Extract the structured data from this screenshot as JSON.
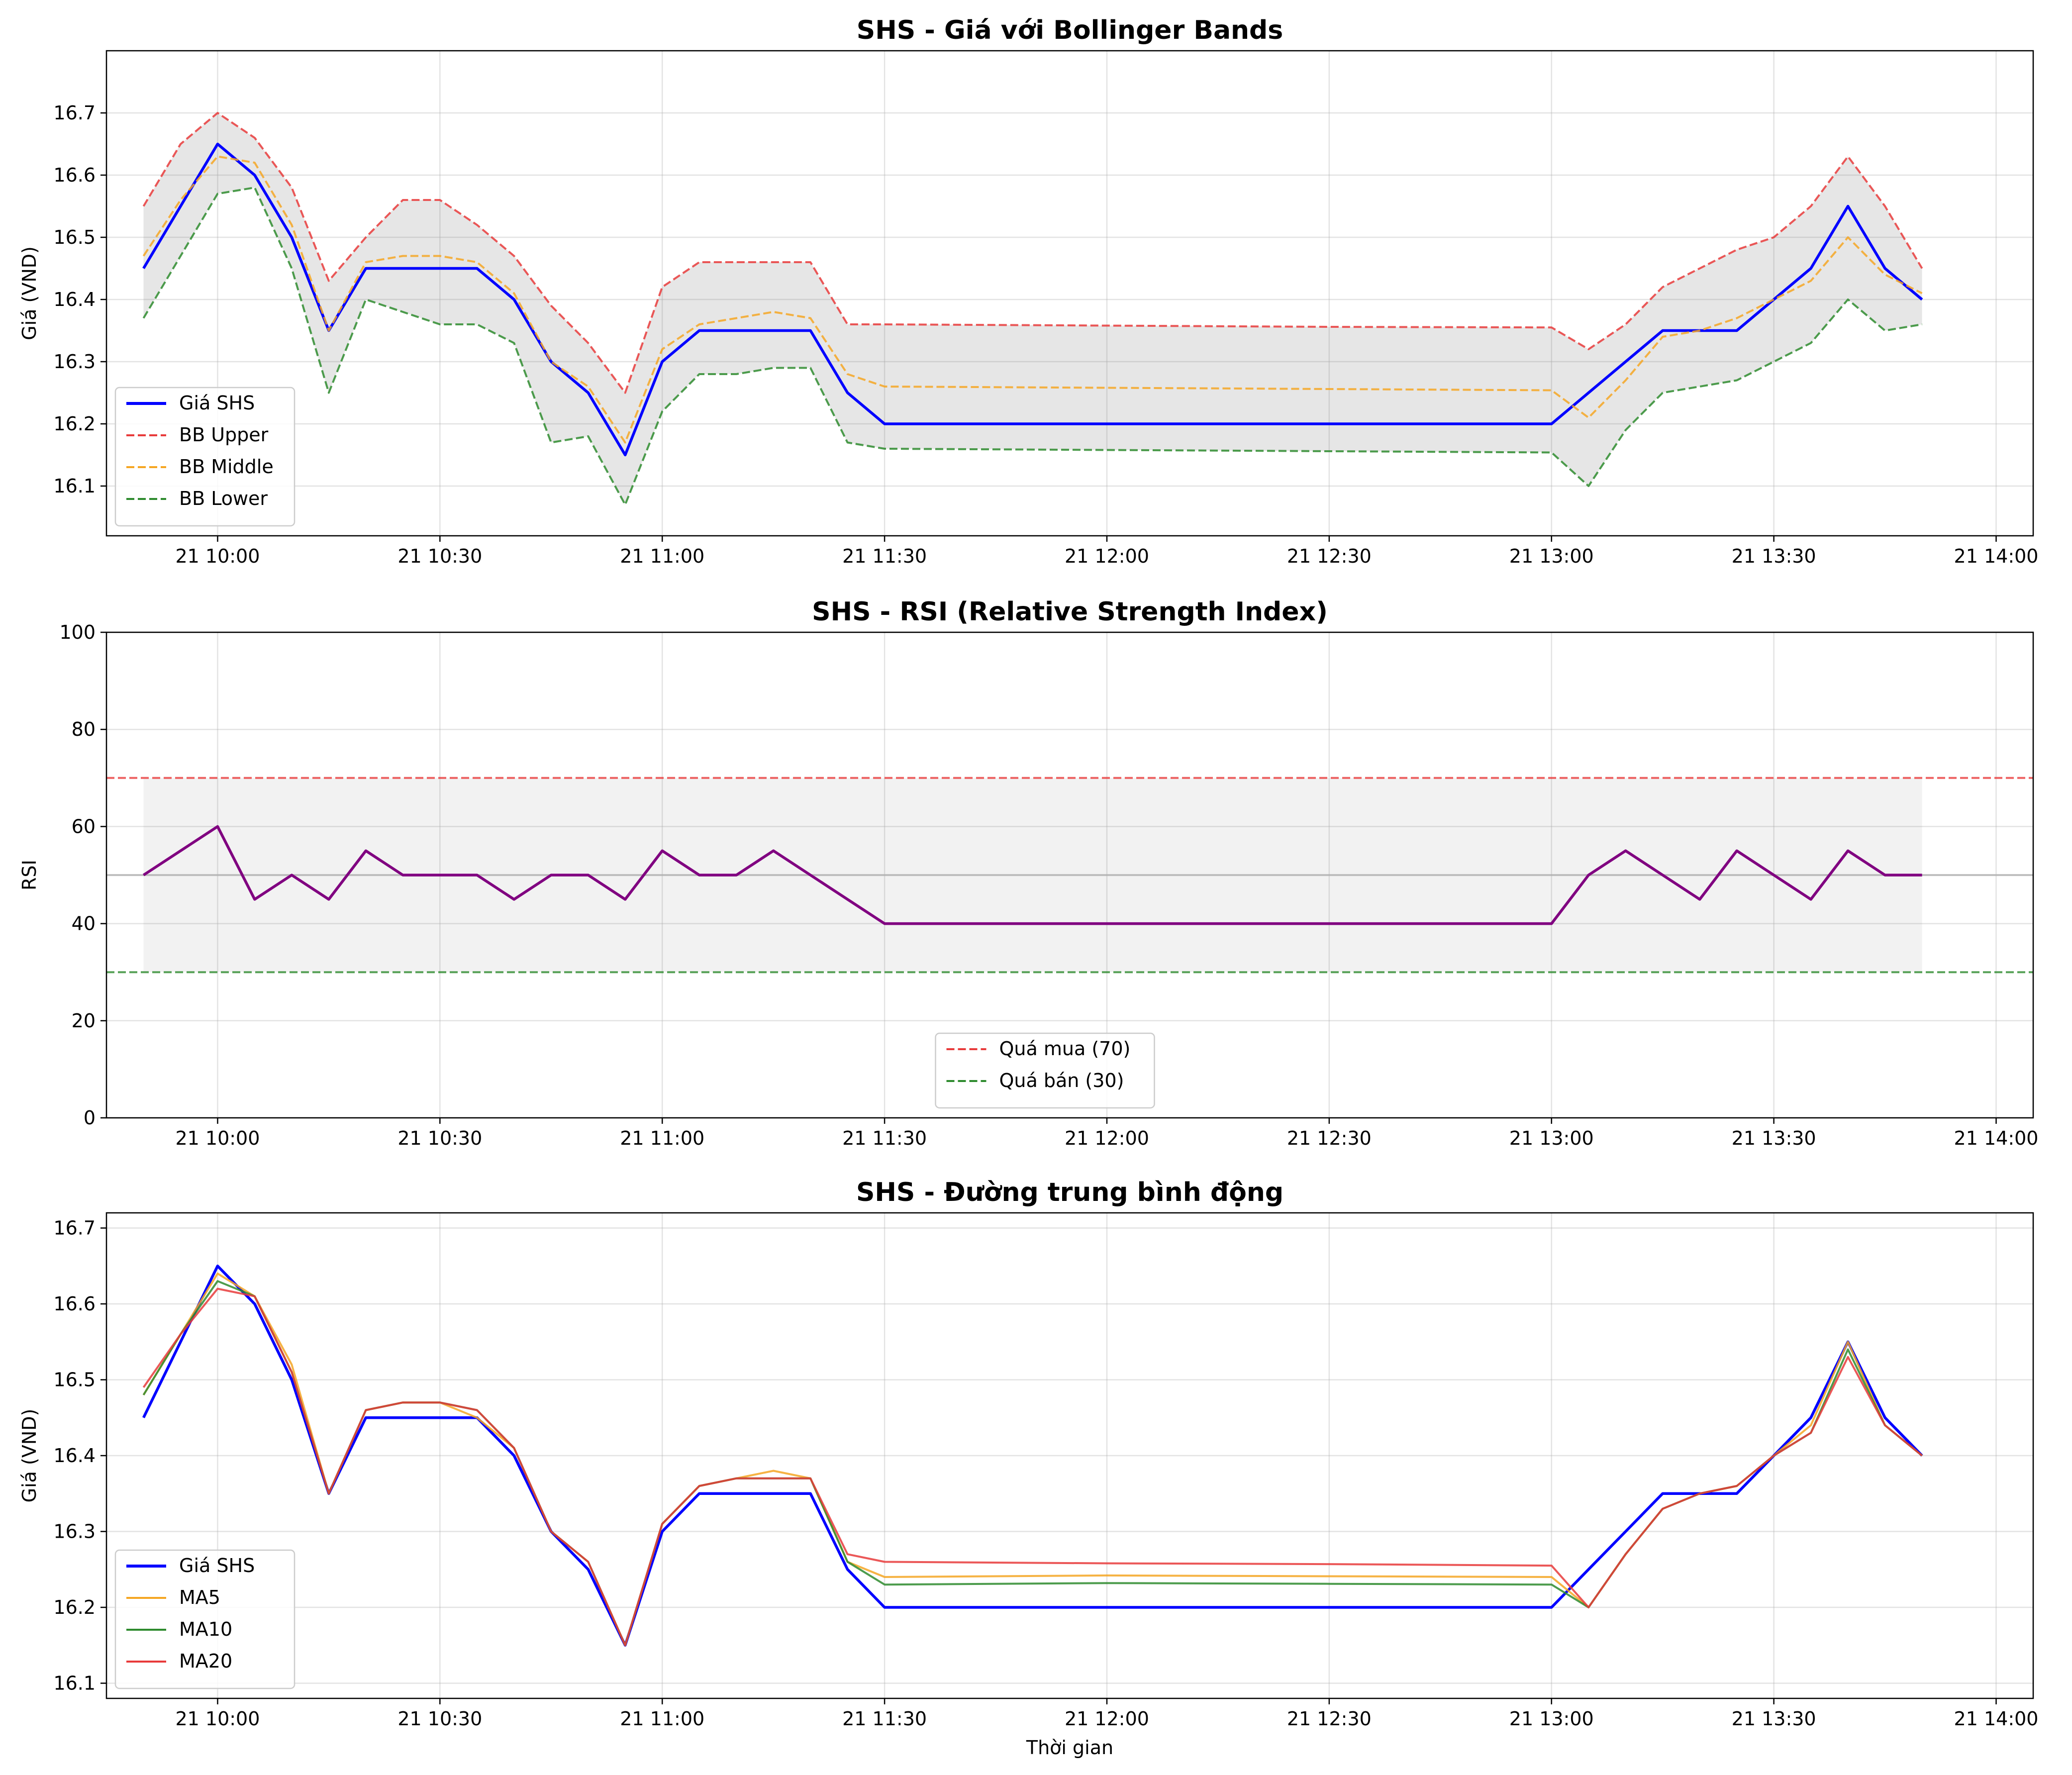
{
  "chart_data": [
    {
      "type": "line",
      "title": "SHS - Giá với Bollinger Bands",
      "xlabel": "",
      "ylabel": "Giá (VND)",
      "xlim": [
        "09:45",
        "14:05"
      ],
      "ylim": [
        16.02,
        16.8
      ],
      "xticks": [
        "21 10:00",
        "21 10:30",
        "21 11:00",
        "21 11:30",
        "21 12:00",
        "21 12:30",
        "21 13:00",
        "21 13:30",
        "21 14:00"
      ],
      "yticks": [
        "16.1",
        "16.2",
        "16.3",
        "16.4",
        "16.5",
        "16.6",
        "16.7"
      ],
      "grid": true,
      "legend_position": "lower-left",
      "x": [
        "09:50",
        "09:55",
        "10:00",
        "10:05",
        "10:10",
        "10:15",
        "10:20",
        "10:25",
        "10:30",
        "10:35",
        "10:40",
        "10:45",
        "10:50",
        "10:55",
        "11:00",
        "11:05",
        "11:10",
        "11:15",
        "11:20",
        "11:25",
        "11:30",
        "12:00",
        "12:30",
        "13:00",
        "13:05",
        "13:10",
        "13:15",
        "13:20",
        "13:25",
        "13:30",
        "13:35",
        "13:40",
        "13:45",
        "13:50"
      ],
      "series": [
        {
          "name": "Giá SHS",
          "color": "#0000ff",
          "style": "solid",
          "values": [
            16.45,
            16.55,
            16.65,
            16.6,
            16.5,
            16.35,
            16.45,
            16.45,
            16.45,
            16.45,
            16.4,
            16.3,
            16.25,
            16.15,
            16.3,
            16.35,
            16.35,
            16.35,
            16.35,
            16.25,
            16.2,
            16.2,
            16.2,
            16.2,
            16.25,
            16.3,
            16.35,
            16.35,
            16.35,
            16.4,
            16.45,
            16.55,
            16.45,
            16.4
          ]
        },
        {
          "name": "BB Upper",
          "color": "#e83b3b",
          "style": "dashed",
          "values": [
            16.55,
            16.65,
            16.7,
            16.66,
            16.58,
            16.43,
            16.5,
            16.56,
            16.56,
            16.52,
            16.47,
            16.39,
            16.33,
            16.25,
            16.42,
            16.46,
            16.46,
            16.46,
            16.46,
            16.36,
            16.36,
            16.358,
            16.356,
            16.355,
            16.32,
            16.36,
            16.42,
            16.45,
            16.48,
            16.5,
            16.55,
            16.63,
            16.55,
            16.45
          ]
        },
        {
          "name": "BB Middle",
          "color": "#f5a623",
          "style": "dashed",
          "values": [
            16.47,
            16.56,
            16.63,
            16.62,
            16.52,
            16.35,
            16.46,
            16.47,
            16.47,
            16.46,
            16.41,
            16.3,
            16.26,
            16.17,
            16.32,
            16.36,
            16.37,
            16.38,
            16.37,
            16.28,
            16.26,
            16.258,
            16.256,
            16.254,
            16.21,
            16.27,
            16.34,
            16.35,
            16.37,
            16.4,
            16.43,
            16.5,
            16.44,
            16.41
          ]
        },
        {
          "name": "BB Lower",
          "color": "#2e8b2e",
          "style": "dashed",
          "values": [
            16.37,
            16.47,
            16.57,
            16.58,
            16.45,
            16.25,
            16.4,
            16.38,
            16.36,
            16.36,
            16.33,
            16.17,
            16.18,
            16.07,
            16.22,
            16.28,
            16.28,
            16.29,
            16.29,
            16.17,
            16.16,
            16.158,
            16.156,
            16.154,
            16.1,
            16.19,
            16.25,
            16.26,
            16.27,
            16.3,
            16.33,
            16.4,
            16.35,
            16.36
          ]
        }
      ],
      "fill_between": [
        "BB Upper",
        "BB Lower"
      ]
    },
    {
      "type": "line",
      "title": "SHS - RSI (Relative Strength Index)",
      "xlabel": "",
      "ylabel": "RSI",
      "xlim": [
        "09:45",
        "14:05"
      ],
      "ylim": [
        0,
        100
      ],
      "xticks": [
        "21 10:00",
        "21 10:30",
        "21 11:00",
        "21 11:30",
        "21 12:00",
        "21 12:30",
        "21 13:00",
        "21 13:30",
        "21 14:00"
      ],
      "yticks": [
        "0",
        "20",
        "40",
        "60",
        "80",
        "100"
      ],
      "grid": true,
      "legend_position": "lower-center",
      "x": [
        "09:50",
        "09:55",
        "10:00",
        "10:05",
        "10:10",
        "10:15",
        "10:20",
        "10:25",
        "10:30",
        "10:35",
        "10:40",
        "10:45",
        "10:50",
        "10:55",
        "11:00",
        "11:05",
        "11:10",
        "11:15",
        "11:20",
        "11:25",
        "11:30",
        "12:00",
        "12:30",
        "13:00",
        "13:05",
        "13:10",
        "13:15",
        "13:20",
        "13:25",
        "13:30",
        "13:35",
        "13:40",
        "13:45",
        "13:50"
      ],
      "series": [
        {
          "name": "RSI",
          "color": "#800080",
          "style": "solid",
          "values": [
            50,
            55,
            60,
            45,
            50,
            45,
            55,
            50,
            50,
            50,
            45,
            50,
            50,
            45,
            55,
            50,
            50,
            55,
            50,
            45,
            40,
            40,
            40,
            40,
            50,
            55,
            50,
            45,
            55,
            50,
            45,
            55,
            50,
            50
          ]
        }
      ],
      "hlines": [
        {
          "name": "Quá mua (70)",
          "value": 70,
          "color": "#e83b3b",
          "style": "dashed"
        },
        {
          "name": "Quá bán (30)",
          "value": 30,
          "color": "#2e8b2e",
          "style": "dashed"
        },
        {
          "name": "",
          "value": 50,
          "color": "#b0b0b0",
          "style": "solid"
        }
      ],
      "band": [
        30,
        70
      ]
    },
    {
      "type": "line",
      "title": "SHS - Đường trung bình động",
      "xlabel": "Thời gian",
      "ylabel": "Giá (VND)",
      "xlim": [
        "09:45",
        "14:05"
      ],
      "ylim": [
        16.08,
        16.72
      ],
      "xticks": [
        "21 10:00",
        "21 10:30",
        "21 11:00",
        "21 11:30",
        "21 12:00",
        "21 12:30",
        "21 13:00",
        "21 13:30",
        "21 14:00"
      ],
      "yticks": [
        "16.1",
        "16.2",
        "16.3",
        "16.4",
        "16.5",
        "16.6",
        "16.7"
      ],
      "grid": true,
      "legend_position": "lower-left",
      "x": [
        "09:50",
        "09:55",
        "10:00",
        "10:05",
        "10:10",
        "10:15",
        "10:20",
        "10:25",
        "10:30",
        "10:35",
        "10:40",
        "10:45",
        "10:50",
        "10:55",
        "11:00",
        "11:05",
        "11:10",
        "11:15",
        "11:20",
        "11:25",
        "11:30",
        "12:00",
        "12:30",
        "13:00",
        "13:05",
        "13:10",
        "13:15",
        "13:20",
        "13:25",
        "13:30",
        "13:35",
        "13:40",
        "13:45",
        "13:50"
      ],
      "series": [
        {
          "name": "Giá SHS",
          "color": "#0000ff",
          "style": "solid",
          "values": [
            16.45,
            16.55,
            16.65,
            16.6,
            16.5,
            16.35,
            16.45,
            16.45,
            16.45,
            16.45,
            16.4,
            16.3,
            16.25,
            16.15,
            16.3,
            16.35,
            16.35,
            16.35,
            16.35,
            16.25,
            16.2,
            16.2,
            16.2,
            16.2,
            16.25,
            16.3,
            16.35,
            16.35,
            16.35,
            16.4,
            16.45,
            16.55,
            16.45,
            16.4
          ]
        },
        {
          "name": "MA5",
          "color": "#f5a623",
          "style": "solid",
          "values": [
            16.48,
            16.56,
            16.64,
            16.61,
            16.52,
            16.35,
            16.46,
            16.47,
            16.47,
            16.45,
            16.41,
            16.3,
            16.26,
            16.15,
            16.31,
            16.36,
            16.37,
            16.38,
            16.37,
            16.26,
            16.24,
            16.242,
            16.241,
            16.24,
            16.2,
            16.27,
            16.33,
            16.35,
            16.36,
            16.4,
            16.44,
            16.55,
            16.44,
            16.4
          ]
        },
        {
          "name": "MA10",
          "color": "#2e8b2e",
          "style": "solid",
          "values": [
            16.48,
            16.56,
            16.63,
            16.61,
            16.51,
            16.35,
            16.46,
            16.47,
            16.47,
            16.46,
            16.41,
            16.3,
            16.26,
            16.15,
            16.31,
            16.36,
            16.37,
            16.37,
            16.37,
            16.26,
            16.23,
            16.232,
            16.231,
            16.23,
            16.2,
            16.27,
            16.33,
            16.35,
            16.36,
            16.4,
            16.43,
            16.54,
            16.44,
            16.4
          ]
        },
        {
          "name": "MA20",
          "color": "#e83b3b",
          "style": "solid",
          "values": [
            16.49,
            16.56,
            16.62,
            16.61,
            16.51,
            16.35,
            16.46,
            16.47,
            16.47,
            16.46,
            16.41,
            16.3,
            16.26,
            16.15,
            16.31,
            16.36,
            16.37,
            16.37,
            16.37,
            16.27,
            16.26,
            16.258,
            16.257,
            16.255,
            16.2,
            16.27,
            16.33,
            16.35,
            16.36,
            16.4,
            16.43,
            16.53,
            16.44,
            16.4
          ]
        }
      ]
    }
  ]
}
